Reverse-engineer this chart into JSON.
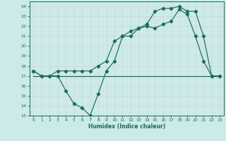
{
  "xlabel": "Humidex (Indice chaleur)",
  "bg_color": "#cceae7",
  "line_color": "#1a6b5a",
  "grid_color": "#b0d8d4",
  "xlim": [
    -0.5,
    23.5
  ],
  "ylim": [
    13,
    24.5
  ],
  "yticks": [
    13,
    14,
    15,
    16,
    17,
    18,
    19,
    20,
    21,
    22,
    23,
    24
  ],
  "xticks": [
    0,
    1,
    2,
    3,
    4,
    5,
    6,
    7,
    8,
    9,
    10,
    11,
    12,
    13,
    14,
    15,
    16,
    17,
    18,
    19,
    20,
    21,
    22,
    23
  ],
  "line1_x": [
    0,
    3,
    23
  ],
  "line1_y": [
    17,
    17,
    17
  ],
  "line2_x": [
    0,
    1,
    2,
    3,
    4,
    5,
    6,
    7,
    8,
    9,
    10,
    11,
    12,
    13,
    14,
    15,
    16,
    17,
    18,
    19,
    20,
    21,
    22,
    23
  ],
  "line2_y": [
    17.5,
    17,
    17,
    17,
    15.5,
    14.2,
    13.8,
    13.0,
    15.2,
    17.5,
    18.5,
    21.0,
    21.0,
    21.8,
    22.0,
    21.8,
    22.2,
    22.5,
    23.7,
    23.2,
    21.0,
    18.5,
    17.0,
    17
  ],
  "line3_x": [
    0,
    1,
    2,
    3,
    4,
    5,
    6,
    7,
    8,
    9,
    10,
    11,
    12,
    13,
    14,
    15,
    16,
    17,
    18,
    19,
    20,
    21,
    22,
    23
  ],
  "line3_y": [
    17.5,
    17,
    17,
    17.5,
    17.5,
    17.5,
    17.5,
    17.5,
    18.0,
    18.5,
    20.5,
    21.0,
    21.5,
    21.8,
    22.2,
    23.5,
    23.8,
    23.8,
    24.0,
    23.5,
    23.5,
    21.0,
    17.0,
    17
  ]
}
